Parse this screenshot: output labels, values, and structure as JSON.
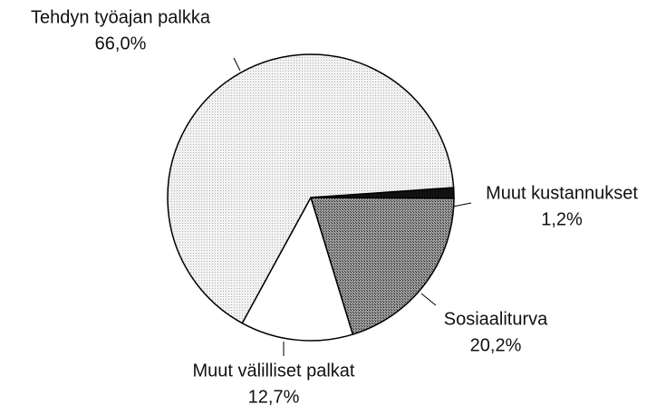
{
  "chart_data": {
    "type": "pie",
    "categories": [
      "Muut kustannukset",
      "Sosiaaliturva",
      "Muut välilliset palkat",
      "Tehdyn työajan palkka"
    ],
    "values": [
      1.2,
      20.2,
      12.7,
      66.0
    ],
    "value_labels": [
      "1,2%",
      "20,2%",
      "12,7%",
      "66,0%"
    ],
    "colors": [
      "#111111",
      "#7a7a7a",
      "#ffffff",
      "#ececec"
    ]
  }
}
